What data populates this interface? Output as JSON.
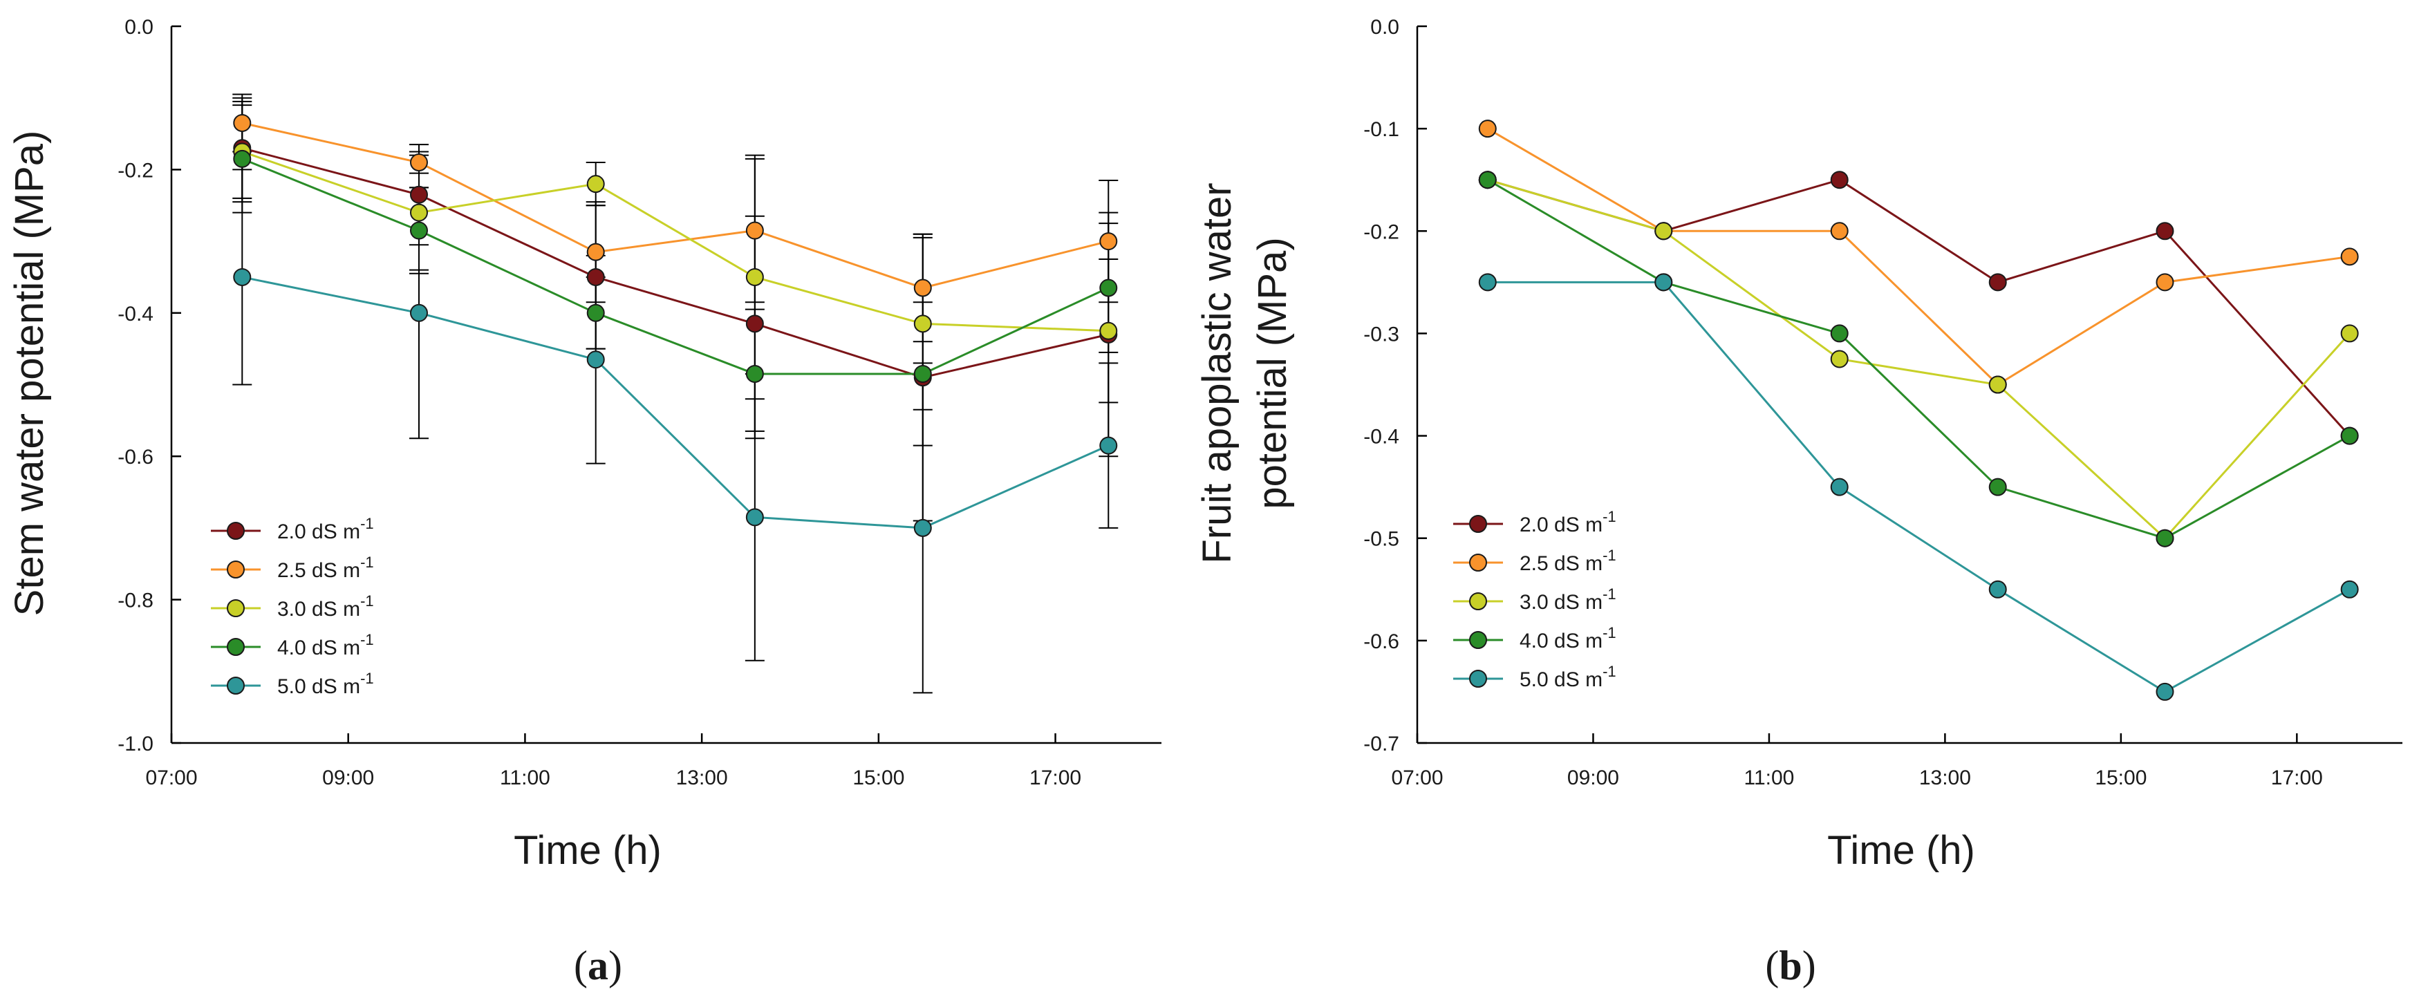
{
  "chart_data": [
    {
      "type": "line",
      "panel_label": "(a)",
      "panel_letter": "a",
      "xlabel": "Time (h)",
      "ylabel": "Stem water potential (MPa)",
      "xlim": [
        7,
        18.2
      ],
      "ylim": [
        -1.0,
        0.0
      ],
      "x_ticks": [
        7,
        9,
        11,
        13,
        15,
        17
      ],
      "x_tick_labels": [
        "07:00",
        "09:00",
        "11:00",
        "13:00",
        "15:00",
        "17:00"
      ],
      "y_ticks": [
        0.0,
        -0.2,
        -0.4,
        -0.6,
        -0.8,
        -1.0
      ],
      "y_tick_labels": [
        "0.0",
        "-0.2",
        "-0.4",
        "-0.6",
        "-0.8",
        "-1.0"
      ],
      "legend_position": "bottom-left",
      "x": [
        7.8,
        9.8,
        11.8,
        13.6,
        15.5,
        17.6
      ],
      "series": [
        {
          "name": "2.0 dS m",
          "color": "#7b1518",
          "values": [
            -0.17,
            -0.235,
            -0.35,
            -0.415,
            -0.49,
            -0.43
          ],
          "errors": [
            0.07,
            0.07,
            0.1,
            0.15,
            0.2,
            0.17
          ]
        },
        {
          "name": "2.5 dS m",
          "color": "#f8932c",
          "values": [
            -0.135,
            -0.19,
            -0.315,
            -0.285,
            -0.365,
            -0.3
          ],
          "errors": [
            0.04,
            0.015,
            0.07,
            0.1,
            0.075,
            0.085
          ]
        },
        {
          "name": "3.0 dS m",
          "color": "#c8d028",
          "values": [
            -0.175,
            -0.26,
            -0.22,
            -0.35,
            -0.415,
            -0.425
          ],
          "errors": [
            0.07,
            0.08,
            0.03,
            0.17,
            0.12,
            0.1
          ]
        },
        {
          "name": "4.0 dS m",
          "color": "#2a8c28",
          "values": [
            -0.185,
            -0.285,
            -0.4,
            -0.485,
            -0.485,
            -0.365
          ],
          "errors": [
            0.075,
            0.06,
            0.05,
            0.09,
            0.1,
            0.09
          ]
        },
        {
          "name": "5.0 dS m",
          "color": "#2e9698",
          "values": [
            -0.35,
            -0.4,
            -0.465,
            -0.685,
            -0.7,
            -0.585
          ],
          "errors": [
            0.15,
            0.175,
            0.145,
            0.2,
            0.23,
            0.115
          ]
        }
      ],
      "legend_superscript": "-1"
    },
    {
      "type": "line",
      "panel_label": "(b)",
      "panel_letter": "b",
      "xlabel": "Time (h)",
      "ylabel_line1": "Fruit apoplastic water",
      "ylabel_line2": "potential (MPa)",
      "xlim": [
        7,
        18.2
      ],
      "ylim": [
        -0.7,
        0.0
      ],
      "x_ticks": [
        7,
        9,
        11,
        13,
        15,
        17
      ],
      "x_tick_labels": [
        "07:00",
        "09:00",
        "11:00",
        "13:00",
        "15:00",
        "17:00"
      ],
      "y_ticks": [
        0.0,
        -0.1,
        -0.2,
        -0.3,
        -0.4,
        -0.5,
        -0.6,
        -0.7
      ],
      "y_tick_labels": [
        "0.0",
        "-0.1",
        "-0.2",
        "-0.3",
        "-0.4",
        "-0.5",
        "-0.6",
        "-0.7"
      ],
      "legend_position": "bottom-left",
      "x": [
        7.8,
        9.8,
        11.8,
        13.6,
        15.5,
        17.6
      ],
      "series": [
        {
          "name": "2.0 dS m",
          "color": "#7b1518",
          "values": [
            -0.15,
            -0.2,
            -0.15,
            -0.25,
            -0.2,
            -0.4
          ]
        },
        {
          "name": "2.5 dS m",
          "color": "#f8932c",
          "values": [
            -0.1,
            -0.2,
            -0.2,
            -0.35,
            -0.25,
            -0.225
          ]
        },
        {
          "name": "3.0 dS m",
          "color": "#c8d028",
          "values": [
            -0.15,
            -0.2,
            -0.325,
            -0.35,
            -0.5,
            -0.3
          ]
        },
        {
          "name": "4.0 dS m",
          "color": "#2a8c28",
          "values": [
            -0.15,
            -0.25,
            -0.3,
            -0.45,
            -0.5,
            -0.4
          ]
        },
        {
          "name": "5.0 dS m",
          "color": "#2e9698",
          "values": [
            -0.25,
            -0.25,
            -0.45,
            -0.55,
            -0.65,
            -0.55
          ]
        }
      ],
      "legend_superscript": "-1"
    }
  ]
}
